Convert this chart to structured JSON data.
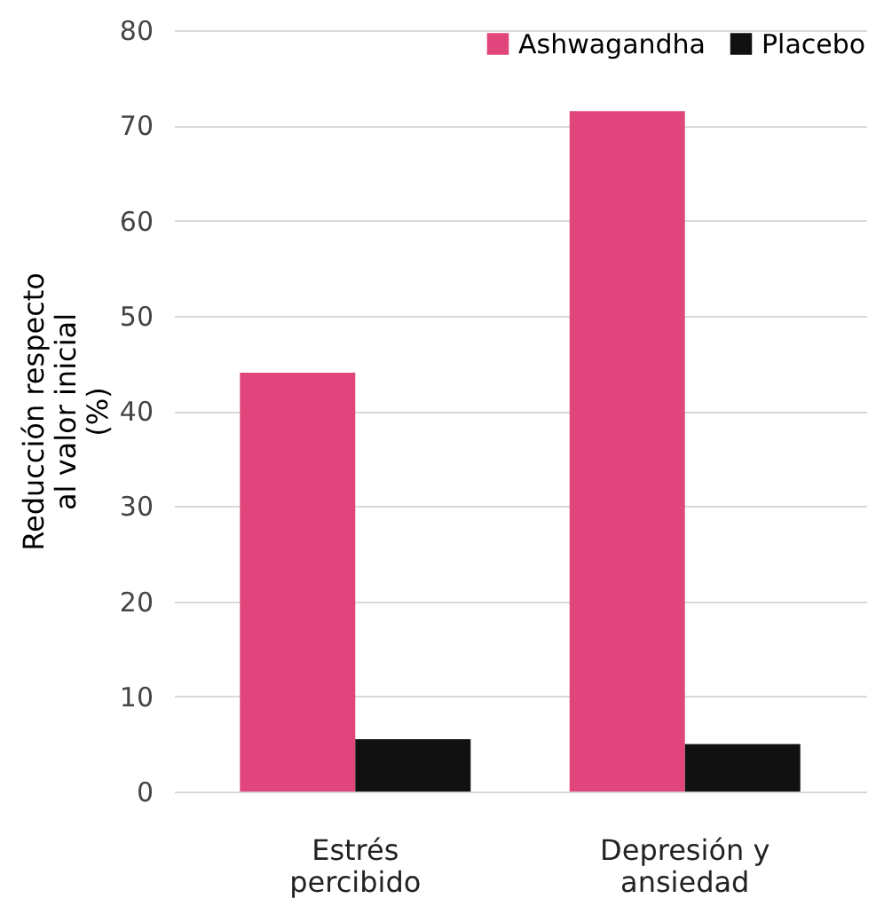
{
  "chart_data": {
    "type": "bar",
    "categories": [
      "Estrés percibido",
      "Depresión y ansiedad"
    ],
    "series": [
      {
        "name": "Ashwagandha",
        "color": "#e0457b",
        "values": [
          44,
          71.5
        ]
      },
      {
        "name": "Placebo",
        "color": "#111111",
        "values": [
          5.5,
          5
        ]
      }
    ],
    "ylabel": "Reducción respecto al valor inicial (%)",
    "ylim": [
      0,
      80
    ],
    "yticks": [
      0,
      10,
      20,
      30,
      40,
      50,
      60,
      70,
      80
    ],
    "grid": "y",
    "legend": "top right"
  }
}
